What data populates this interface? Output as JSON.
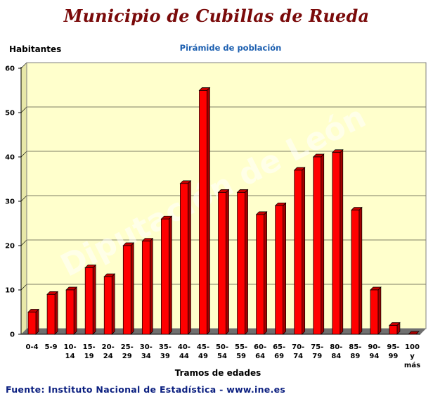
{
  "page": {
    "title": "Municipio de Cubillas de Rueda",
    "source": "Fuente: Instituto Nacional de Estadística - www.ine.es",
    "watermark": "Diputación de León"
  },
  "colors": {
    "bar": "#ff0000",
    "bar_side": "#a40000",
    "bar_top": "#c60000",
    "plot_bg": "#ffffcc",
    "floor": "#6f6f6f",
    "title": "#7a0a0a",
    "subtitle": "#1c5fb0",
    "source": "#0b1f80"
  },
  "chart_data": {
    "type": "bar",
    "title": "Pirámide de población",
    "ylabel": "Habitantes",
    "xlabel": "Tramos de edades",
    "ylim": [
      0,
      60
    ],
    "yticks": [
      0,
      10,
      20,
      30,
      40,
      50,
      60
    ],
    "grid": true,
    "legend": "none",
    "categories": [
      "0-4",
      "5-9",
      "10-14",
      "15-19",
      "20-24",
      "25-29",
      "30-34",
      "35-39",
      "40-44",
      "45-49",
      "50-54",
      "55-59",
      "60-64",
      "65-69",
      "70-74",
      "75-79",
      "80-84",
      "85-89",
      "90-94",
      "95-99",
      "100 y más"
    ],
    "category_lines": [
      [
        "0-4"
      ],
      [
        "5-9"
      ],
      [
        "10-",
        "14"
      ],
      [
        "15-",
        "19"
      ],
      [
        "20-",
        "24"
      ],
      [
        "25-",
        "29"
      ],
      [
        "30-",
        "34"
      ],
      [
        "35-",
        "39"
      ],
      [
        "40-",
        "44"
      ],
      [
        "45-",
        "49"
      ],
      [
        "50-",
        "54"
      ],
      [
        "55-",
        "59"
      ],
      [
        "60-",
        "64"
      ],
      [
        "65-",
        "69"
      ],
      [
        "70-",
        "74"
      ],
      [
        "75-",
        "79"
      ],
      [
        "80-",
        "84"
      ],
      [
        "85-",
        "89"
      ],
      [
        "90-",
        "94"
      ],
      [
        "95-",
        "99"
      ],
      [
        "100",
        "y",
        "más"
      ]
    ],
    "values": [
      5,
      9,
      10,
      15,
      13,
      20,
      21,
      26,
      34,
      55,
      32,
      32,
      27,
      29,
      37,
      40,
      41,
      28,
      10,
      2,
      0
    ]
  }
}
